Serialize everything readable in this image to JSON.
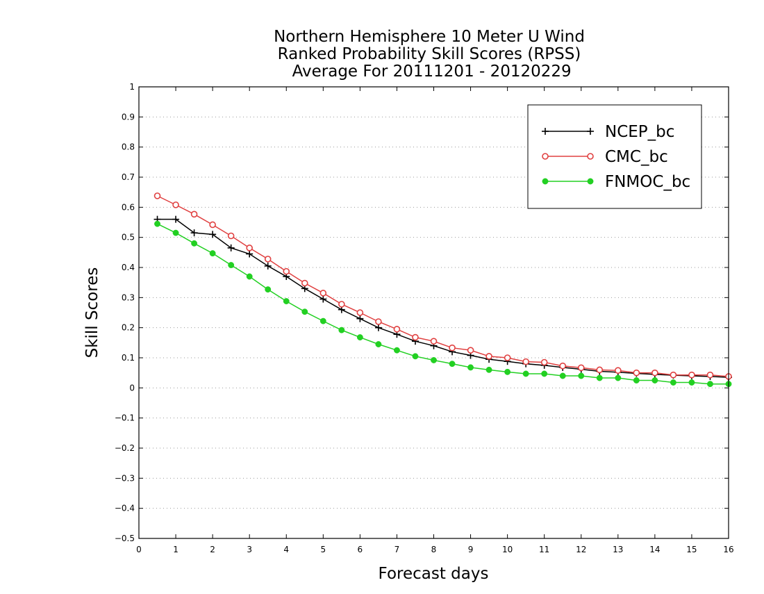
{
  "chart_data": {
    "type": "line",
    "title": [
      "Northern Hemisphere 10 Meter U Wind",
      "Ranked Probability Skill Scores (RPSS)",
      " Average For 20111201 - 20120229"
    ],
    "xlabel": "Forecast days",
    "ylabel": "Skill Scores",
    "xlim": [
      0,
      16
    ],
    "ylim": [
      -0.5,
      1
    ],
    "xticks": [
      0,
      1,
      2,
      3,
      4,
      5,
      6,
      7,
      8,
      9,
      10,
      11,
      12,
      13,
      14,
      15,
      16
    ],
    "yticks": [
      -0.5,
      -0.4,
      -0.3,
      -0.2,
      -0.1,
      0,
      0.1,
      0.2,
      0.3,
      0.4,
      0.5,
      0.6,
      0.7,
      0.8,
      0.9,
      1
    ],
    "ytick_labels": [
      "−0.5",
      "−0.4",
      "−0.3",
      "−0.2",
      "−0.1",
      "0",
      "0.1",
      "0.2",
      "0.3",
      "0.4",
      "0.5",
      "0.6",
      "0.7",
      "0.8",
      "0.9",
      "1"
    ],
    "grid": "horizontal dotted",
    "legend_position": "top-right",
    "x": [
      0.5,
      1.0,
      1.5,
      2.0,
      2.5,
      3.0,
      3.5,
      4.0,
      4.5,
      5.0,
      5.5,
      6.0,
      6.5,
      7.0,
      7.5,
      8.0,
      8.5,
      9.0,
      9.5,
      10.0,
      10.5,
      11.0,
      11.5,
      12.0,
      12.5,
      13.0,
      13.5,
      14.0,
      14.5,
      15.0,
      15.5,
      16.0
    ],
    "series": [
      {
        "name": "NCEP_bc",
        "color": "#000000",
        "marker": "plus",
        "values": [
          0.56,
          0.56,
          0.515,
          0.51,
          0.465,
          0.445,
          0.405,
          0.37,
          0.33,
          0.295,
          0.26,
          0.23,
          0.2,
          0.178,
          0.155,
          0.14,
          0.12,
          0.108,
          0.095,
          0.088,
          0.08,
          0.075,
          0.068,
          0.062,
          0.055,
          0.052,
          0.048,
          0.045,
          0.042,
          0.04,
          0.038,
          0.035
        ]
      },
      {
        "name": "CMC_bc",
        "color": "#e04040",
        "marker": "open-circle",
        "values": [
          0.638,
          0.608,
          0.577,
          0.542,
          0.505,
          0.465,
          0.428,
          0.387,
          0.348,
          0.315,
          0.278,
          0.25,
          0.22,
          0.195,
          0.168,
          0.155,
          0.133,
          0.125,
          0.105,
          0.1,
          0.087,
          0.085,
          0.073,
          0.067,
          0.06,
          0.058,
          0.05,
          0.05,
          0.043,
          0.043,
          0.043,
          0.038
        ]
      },
      {
        "name": "FNMOC_bc",
        "color": "#22d022",
        "marker": "filled-circle",
        "values": [
          0.545,
          0.515,
          0.48,
          0.447,
          0.408,
          0.37,
          0.327,
          0.288,
          0.253,
          0.222,
          0.192,
          0.168,
          0.145,
          0.125,
          0.105,
          0.092,
          0.08,
          0.068,
          0.06,
          0.053,
          0.047,
          0.047,
          0.04,
          0.04,
          0.033,
          0.033,
          0.025,
          0.025,
          0.018,
          0.018,
          0.013,
          0.013
        ]
      }
    ]
  }
}
